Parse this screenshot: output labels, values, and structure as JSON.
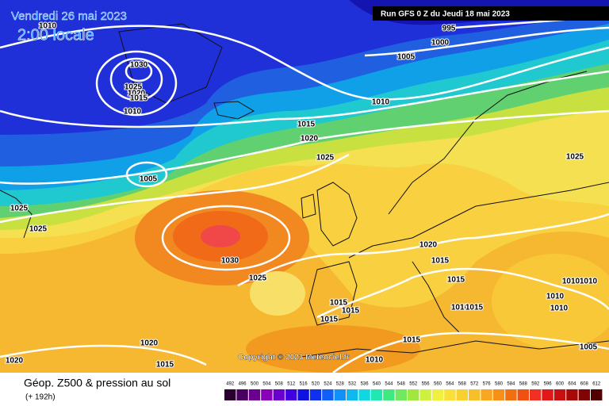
{
  "header": {
    "date": "Vendredi 26 mai 2023",
    "time": "2:00 locale",
    "run": "Run GFS 0 Z du Jeudi 18 mai 2023"
  },
  "isobars": [
    1010,
    1030,
    1025,
    1020,
    1015,
    1010,
    1005,
    1025,
    1025,
    995,
    1000,
    1005,
    1010,
    1015,
    1020,
    1025,
    1030,
    1025,
    1025,
    1020,
    1015,
    1015,
    1015,
    1015,
    1015,
    1010,
    1015,
    1010,
    1010,
    1010,
    1010,
    1015,
    1010,
    1020,
    1015,
    1020,
    1005
  ],
  "copyright": "Copyright © 2023 Meteociel.fr",
  "legend": {
    "title": "Géop. Z500 & pression au sol",
    "subtitle": "(+ 192h)",
    "scale": [
      492,
      496,
      500,
      504,
      508,
      512,
      516,
      520,
      524,
      528,
      532,
      536,
      540,
      544,
      548,
      552,
      556,
      560,
      564,
      568,
      572,
      576,
      580,
      584,
      588,
      592,
      596,
      600,
      604,
      608,
      612
    ]
  }
}
